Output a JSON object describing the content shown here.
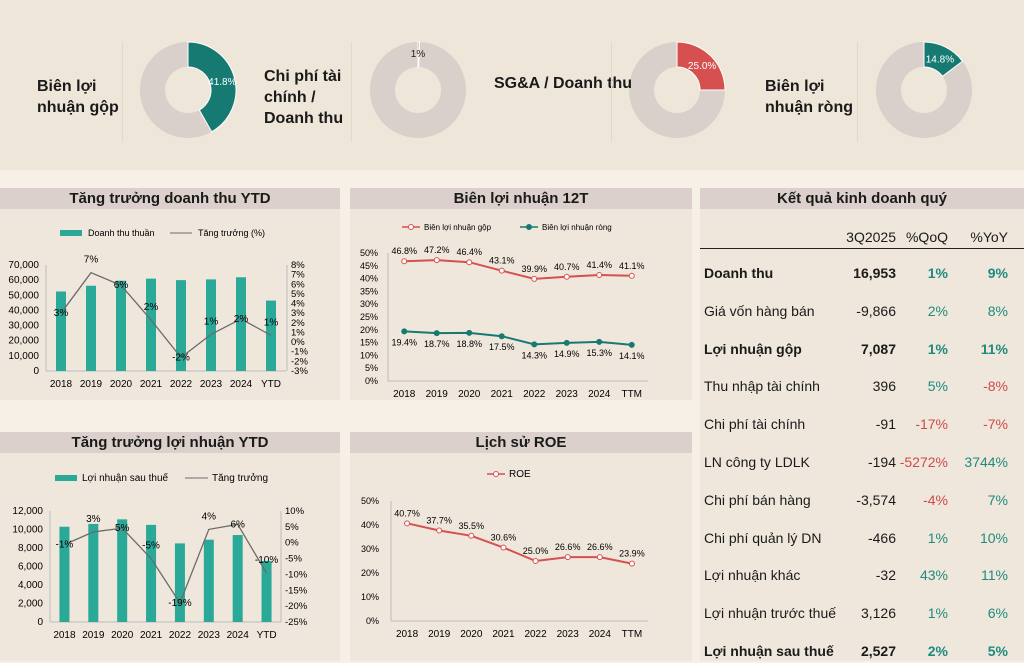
{
  "colors": {
    "teal_dark": "#177a72",
    "teal_bar": "#2aa898",
    "red": "#d65050",
    "gray_ring": "#d9cfcb",
    "line_gray": "#6b6b6b",
    "pos": "#1f8a7e",
    "neg": "#cf4a4a"
  },
  "kpis": [
    {
      "label": "Biên lợi nhuận gộp",
      "value": 41.8,
      "value_label": "41.8%",
      "color": "#177a72"
    },
    {
      "label": "Chi phí tài chính / Doanh thu",
      "value": 0.5,
      "value_label": "1%",
      "color": "#e06060"
    },
    {
      "label": "SG&A / Doanh thu",
      "value": 25.0,
      "value_label": "25.0%",
      "color": "#d65050"
    },
    {
      "label": "Biên lợi nhuận ròng",
      "value": 14.8,
      "value_label": "14.8%",
      "color": "#177a72"
    }
  ],
  "chart_data": [
    {
      "type": "bar+line",
      "title": "Tăng trưởng doanh thu YTD",
      "categories": [
        "2018",
        "2019",
        "2020",
        "2021",
        "2022",
        "2023",
        "2024",
        "YTD"
      ],
      "bar_series": {
        "name": "Doanh thu thuần",
        "values": [
          52500,
          56300,
          59600,
          61000,
          60000,
          60500,
          61900,
          46500
        ]
      },
      "line_series": {
        "name": "Tăng trưởng (%)",
        "values": [
          3,
          7.2,
          5.9,
          2.3,
          -1.6,
          0.8,
          2.4,
          0.7
        ],
        "labels": [
          "3%",
          "7%",
          "6%",
          "2%",
          "-2%",
          "1%",
          "2%",
          "1%"
        ]
      },
      "ylim": [
        0,
        70000
      ],
      "yticks": [
        "0",
        "10,000",
        "20,000",
        "30,000",
        "40,000",
        "50,000",
        "60,000",
        "70,000"
      ],
      "y2lim": [
        -3,
        8
      ],
      "y2ticks": [
        "-3%",
        "-2%",
        "-1%",
        "0%",
        "1%",
        "2%",
        "3%",
        "4%",
        "5%",
        "6%",
        "7%",
        "8%"
      ],
      "legend": "top"
    },
    {
      "type": "bar+line",
      "title": "Tăng trưởng lợi nhuận YTD",
      "categories": [
        "2018",
        "2019",
        "2020",
        "2021",
        "2022",
        "2023",
        "2024",
        "YTD"
      ],
      "bar_series": {
        "name": "Lợi nhuận sau thuế",
        "values": [
          10300,
          10600,
          11100,
          10500,
          8500,
          8900,
          9400,
          6600
        ]
      },
      "line_series": {
        "name": "Tăng trưởng",
        "values": [
          -0.6,
          3.4,
          4.6,
          -5,
          -19,
          4.2,
          5.8,
          -9.6
        ],
        "labels": [
          "-1%",
          "3%",
          "5%",
          "-5%",
          "-19%",
          "4%",
          "6%",
          "-10%"
        ]
      },
      "ylim": [
        0,
        12000
      ],
      "yticks": [
        "0",
        "2,000",
        "4,000",
        "6,000",
        "8,000",
        "10,000",
        "12,000"
      ],
      "y2lim": [
        -25,
        10
      ],
      "y2ticks": [
        "-25%",
        "-20%",
        "-15%",
        "-10%",
        "-5%",
        "0%",
        "5%",
        "10%"
      ],
      "legend": "top"
    },
    {
      "type": "line",
      "title": "Biên lợi nhuận 12T",
      "categories": [
        "2018",
        "2019",
        "2020",
        "2021",
        "2022",
        "2023",
        "2024",
        "TTM"
      ],
      "series": [
        {
          "name": "Biên lợi nhuận gộp",
          "values": [
            46.8,
            47.2,
            46.4,
            43.1,
            39.9,
            40.7,
            41.4,
            41.1
          ],
          "color": "#d65050"
        },
        {
          "name": "Biên lợi nhuận ròng",
          "values": [
            19.4,
            18.7,
            18.8,
            17.5,
            14.3,
            14.9,
            15.3,
            14.1
          ],
          "color": "#177a72"
        }
      ],
      "ylim": [
        0,
        50
      ],
      "yticks": [
        "0%",
        "5%",
        "10%",
        "15%",
        "20%",
        "25%",
        "30%",
        "35%",
        "40%",
        "45%",
        "50%"
      ],
      "legend": "top"
    },
    {
      "type": "line",
      "title": "Lịch sử ROE",
      "categories": [
        "2018",
        "2019",
        "2020",
        "2021",
        "2022",
        "2023",
        "2024",
        "TTM"
      ],
      "series": [
        {
          "name": "ROE",
          "values": [
            40.7,
            37.7,
            35.5,
            30.6,
            25.0,
            26.6,
            26.6,
            23.9
          ],
          "color": "#d65050"
        }
      ],
      "ylim": [
        0,
        50
      ],
      "yticks": [
        "0%",
        "10%",
        "20%",
        "30%",
        "40%",
        "50%"
      ],
      "legend": "top"
    }
  ],
  "table": {
    "title": "Kết quả kinh doanh quý",
    "headers": [
      "",
      "3Q2025",
      "%QoQ",
      "%YoY"
    ],
    "rows": [
      {
        "label": "Doanh thu",
        "value": "16,953",
        "qoq": "1%",
        "yoy": "9%",
        "bold": true
      },
      {
        "label": "Giá vốn hàng bán",
        "value": "-9,866",
        "qoq": "2%",
        "yoy": "8%"
      },
      {
        "label": "Lợi nhuận gộp",
        "value": "7,087",
        "qoq": "1%",
        "yoy": "11%",
        "bold": true
      },
      {
        "label": "Thu nhập tài chính",
        "value": "396",
        "qoq": "5%",
        "yoy": "-8%"
      },
      {
        "label": "Chi phí tài chính",
        "value": "-91",
        "qoq": "-17%",
        "yoy": "-7%"
      },
      {
        "label": "LN công ty LDLK",
        "value": "-194",
        "qoq": "-5272%",
        "yoy": "3744%"
      },
      {
        "label": "Chi phí bán hàng",
        "value": "-3,574",
        "qoq": "-4%",
        "yoy": "7%"
      },
      {
        "label": "Chi phí quản lý DN",
        "value": "-466",
        "qoq": "1%",
        "yoy": "10%"
      },
      {
        "label": "Lợi nhuận khác",
        "value": "-32",
        "qoq": "43%",
        "yoy": "11%"
      },
      {
        "label": "Lợi nhuận trước thuế",
        "value": "3,126",
        "qoq": "1%",
        "yoy": "6%"
      },
      {
        "label": "Lợi nhuận sau thuế",
        "value": "2,527",
        "qoq": "2%",
        "yoy": "5%",
        "bold": true
      }
    ]
  }
}
